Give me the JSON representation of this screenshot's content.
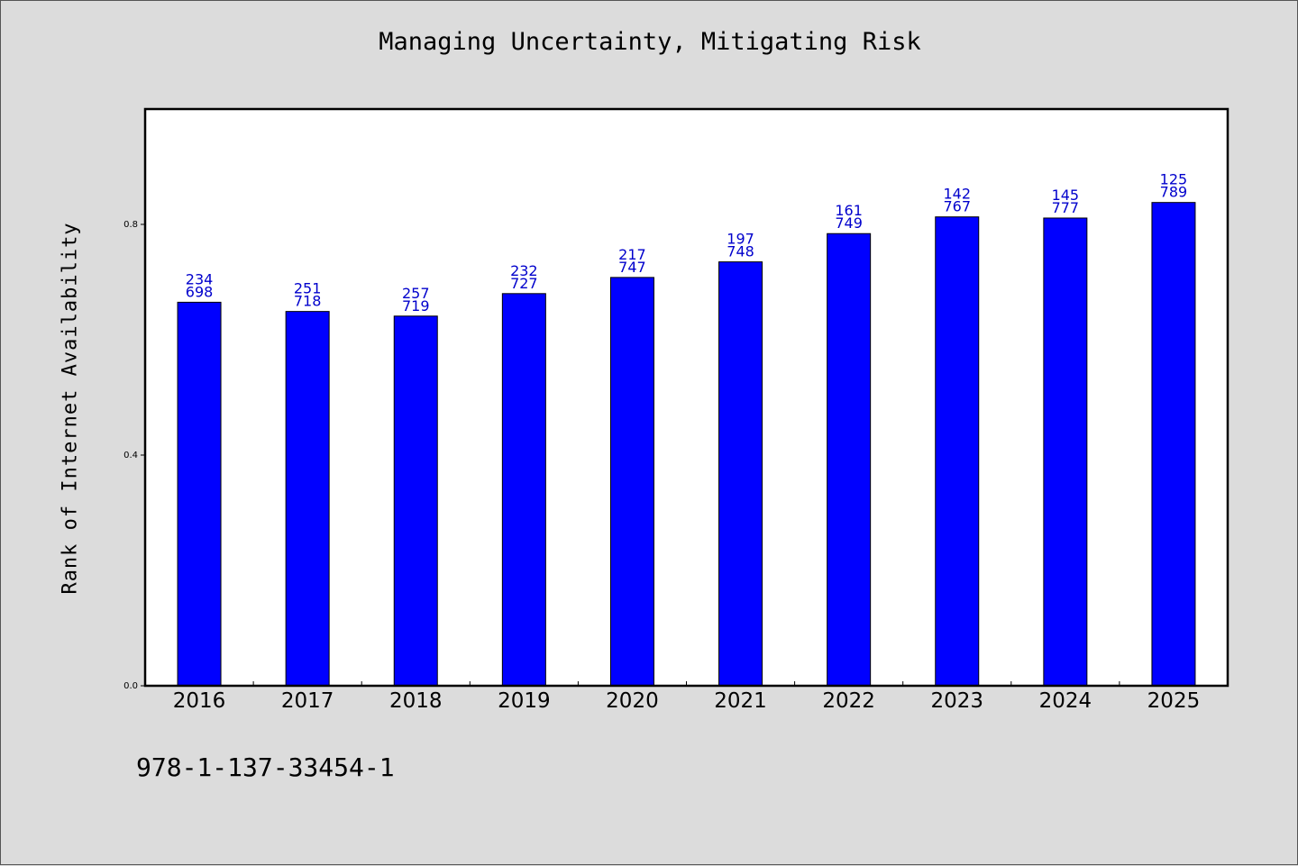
{
  "title": "Managing Uncertainty, Mitigating Risk",
  "footer": "978-1-137-33454-1",
  "colors": {
    "background": "#dcdcdc",
    "plot_background": "#ffffff",
    "bar": "#0000ff",
    "label": "#0000cc"
  },
  "chart_data": {
    "type": "bar",
    "title": "Managing Uncertainty, Mitigating Risk",
    "xlabel": "",
    "ylabel": "Rank of Internet Availability",
    "ylim": [
      0,
      1.0
    ],
    "yticks": [
      0.0,
      0.4,
      0.8
    ],
    "ytick_labels": [
      "0.0",
      "0.4",
      "0.8"
    ],
    "grid": false,
    "categories": [
      "2016",
      "2017",
      "2018",
      "2019",
      "2020",
      "2021",
      "2022",
      "2023",
      "2024",
      "2025"
    ],
    "series": [
      {
        "values": [
          0.665,
          0.649,
          0.641,
          0.68,
          0.708,
          0.735,
          0.784,
          0.813,
          0.811,
          0.838
        ]
      }
    ],
    "annotations": [
      {
        "top": "234",
        "bottom": "698"
      },
      {
        "top": "251",
        "bottom": "718"
      },
      {
        "top": "257",
        "bottom": "719"
      },
      {
        "top": "232",
        "bottom": "727"
      },
      {
        "top": "217",
        "bottom": "747"
      },
      {
        "top": "197",
        "bottom": "748"
      },
      {
        "top": "161",
        "bottom": "749"
      },
      {
        "top": "142",
        "bottom": "767"
      },
      {
        "top": "145",
        "bottom": "777"
      },
      {
        "top": "125",
        "bottom": "789"
      }
    ]
  }
}
